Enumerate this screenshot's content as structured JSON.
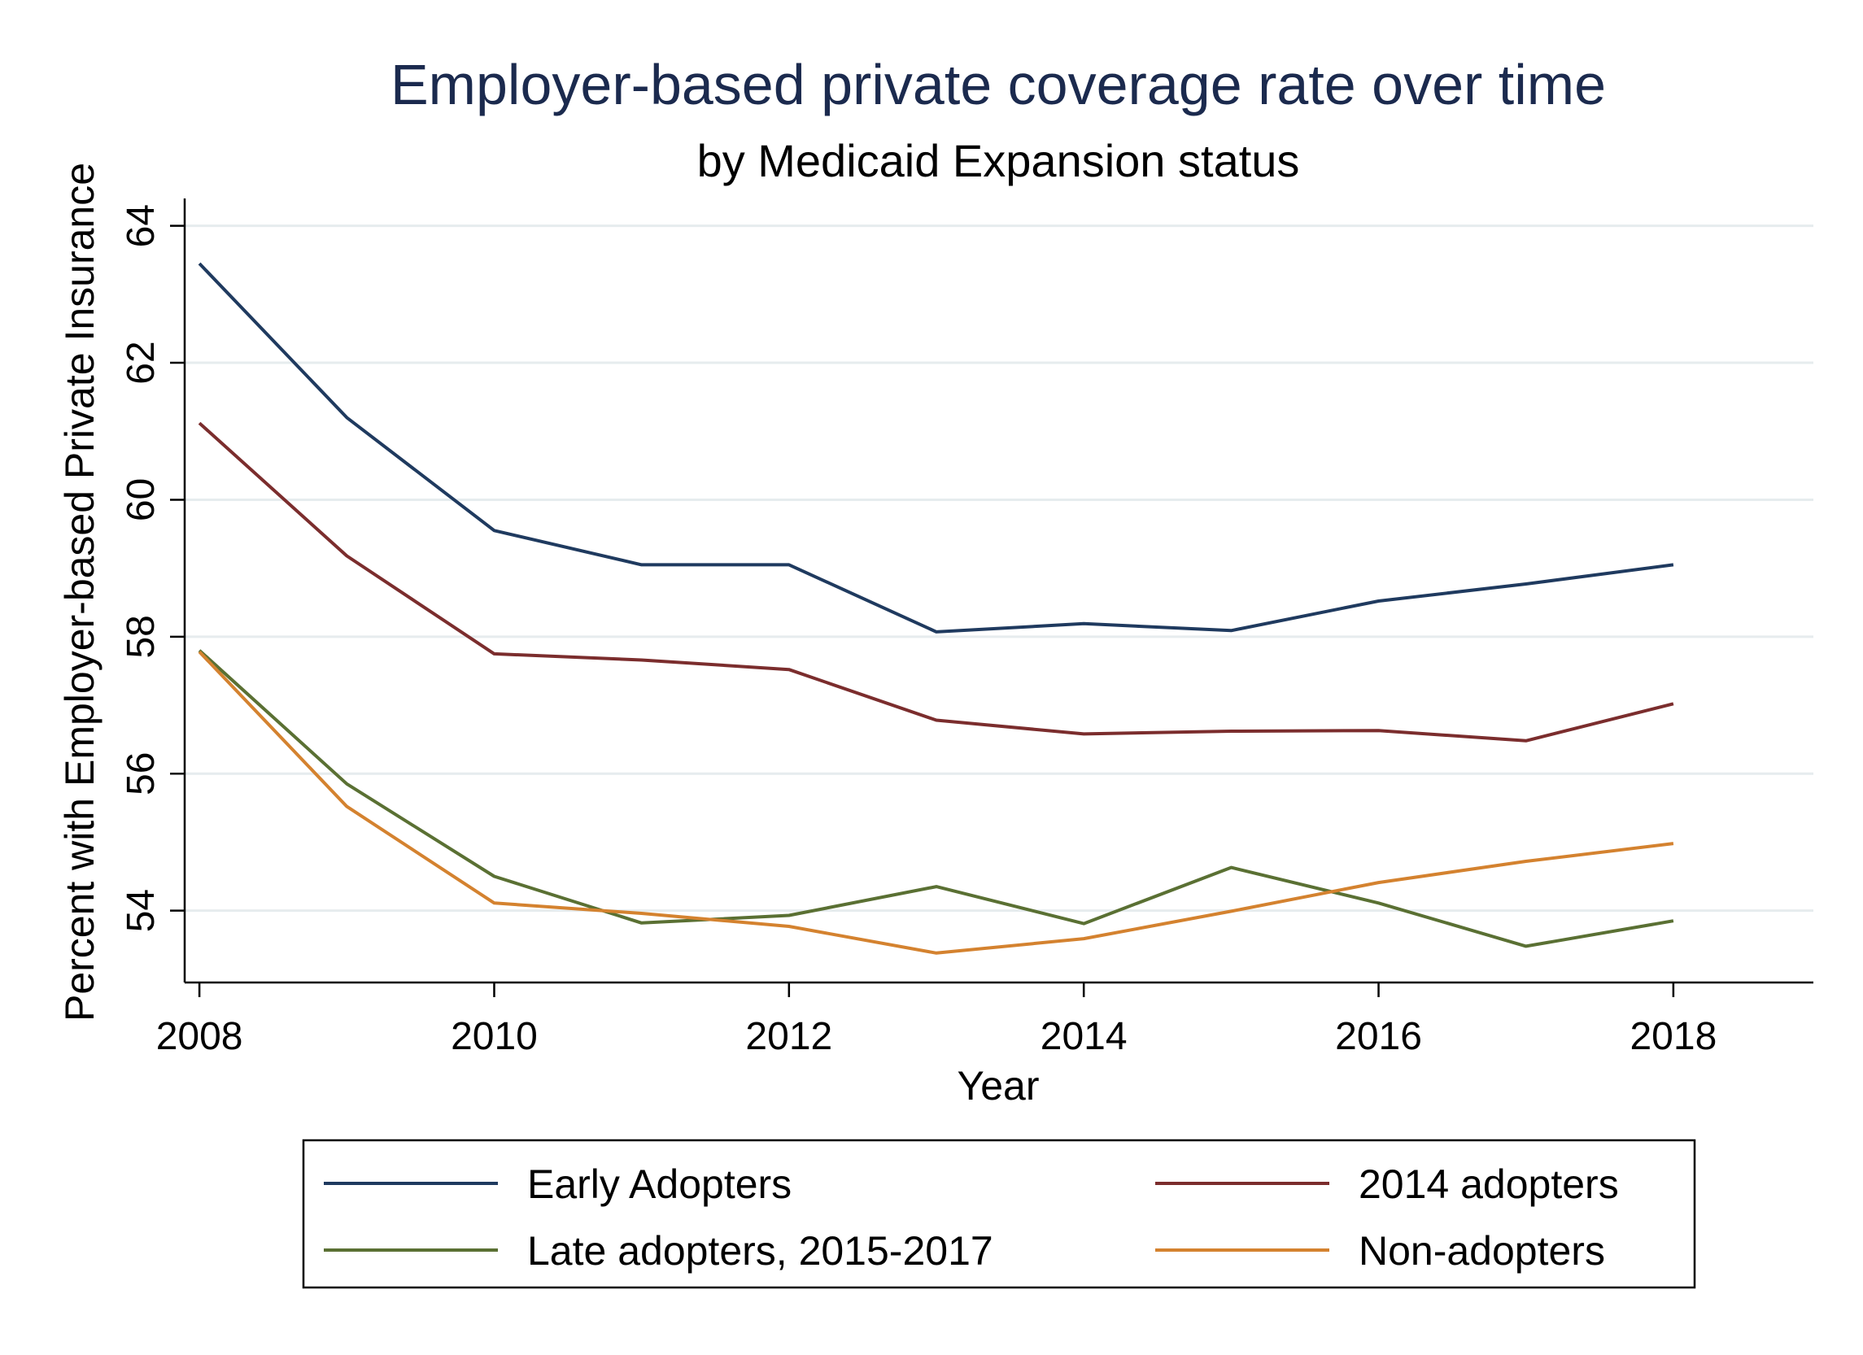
{
  "chart_data": {
    "type": "line",
    "title": "Employer-based private coverage rate over time",
    "subtitle": "by Medicaid Expansion status",
    "xlabel": "Year",
    "ylabel": "Percent with Employer-based Private Insurance",
    "x": [
      2008,
      2009,
      2010,
      2011,
      2012,
      2013,
      2014,
      2015,
      2016,
      2017,
      2018
    ],
    "xlim": [
      2007.9,
      2018.95
    ],
    "ylim": [
      52.95,
      64.4
    ],
    "xticks": [
      "2008",
      "2010",
      "2012",
      "2014",
      "2016",
      "2018"
    ],
    "yticks": [
      "54",
      "56",
      "58",
      "60",
      "62",
      "64"
    ],
    "grid": "horizontal",
    "legend_position": "bottom",
    "series": [
      {
        "name": "Early Adopters",
        "color": "#1f3a5f",
        "values": [
          63.45,
          61.2,
          59.55,
          59.05,
          59.05,
          58.07,
          58.19,
          58.09,
          58.52,
          58.77,
          59.05
        ]
      },
      {
        "name": "2014 adopters",
        "color": "#7b2d2d",
        "values": [
          61.12,
          59.18,
          57.75,
          57.66,
          57.52,
          56.78,
          56.58,
          56.62,
          56.63,
          56.48,
          57.02
        ]
      },
      {
        "name": "Late adopters, 2015-2017",
        "color": "#5a7033",
        "values": [
          57.8,
          55.85,
          54.5,
          53.82,
          53.93,
          54.35,
          53.81,
          54.63,
          54.11,
          53.48,
          53.85
        ]
      },
      {
        "name": "Non-adopters",
        "color": "#d4822f",
        "values": [
          57.78,
          55.52,
          54.11,
          53.96,
          53.77,
          53.38,
          53.59,
          53.99,
          54.41,
          54.72,
          54.98
        ]
      }
    ]
  }
}
